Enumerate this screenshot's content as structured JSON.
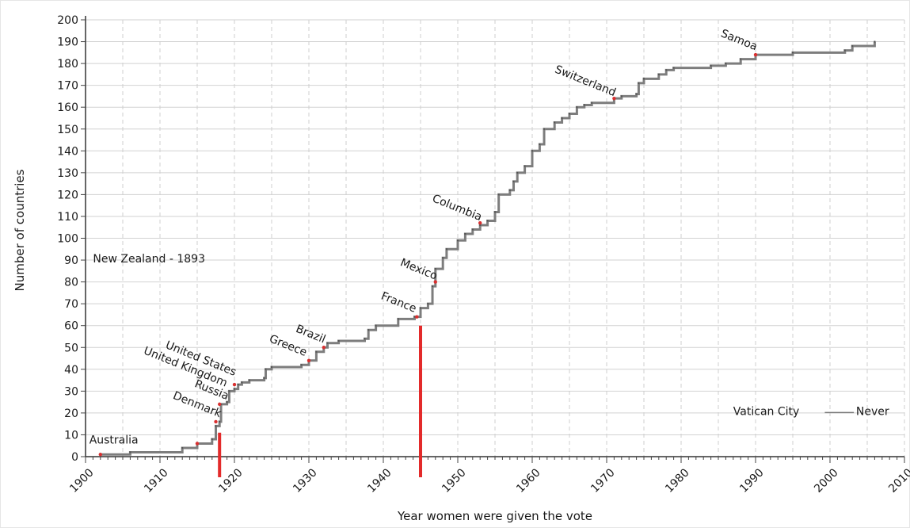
{
  "chart_data": {
    "type": "line",
    "title": "",
    "xlabel": "Year women were given the vote",
    "ylabel": "Number of countries",
    "xlim": [
      1900,
      2010
    ],
    "ylim": [
      0,
      200
    ],
    "x_ticks": [
      1900,
      1910,
      1920,
      1930,
      1940,
      1950,
      1960,
      1970,
      1980,
      1990,
      2000,
      2010
    ],
    "y_ticks": [
      0,
      10,
      20,
      30,
      40,
      50,
      60,
      70,
      80,
      90,
      100,
      110,
      120,
      130,
      140,
      150,
      160,
      170,
      180,
      190,
      200
    ],
    "grid": true,
    "series": [
      {
        "type": "step",
        "color": "#7d7d7d",
        "points": [
          [
            1902,
            1
          ],
          [
            1906,
            2
          ],
          [
            1913,
            4
          ],
          [
            1915,
            6
          ],
          [
            1917,
            8
          ],
          [
            1917.5,
            14
          ],
          [
            1918,
            16
          ],
          [
            1918.2,
            24
          ],
          [
            1919,
            25
          ],
          [
            1919.3,
            30
          ],
          [
            1920,
            31
          ],
          [
            1920.5,
            33
          ],
          [
            1921,
            34
          ],
          [
            1922,
            35
          ],
          [
            1924,
            36
          ],
          [
            1924.2,
            40
          ],
          [
            1925,
            41
          ],
          [
            1929,
            42
          ],
          [
            1930,
            44
          ],
          [
            1931,
            48
          ],
          [
            1932,
            50
          ],
          [
            1932.5,
            52
          ],
          [
            1934,
            53
          ],
          [
            1937.5,
            54
          ],
          [
            1938,
            58
          ],
          [
            1939,
            60
          ],
          [
            1942,
            63
          ],
          [
            1944.2,
            64
          ],
          [
            1945,
            68
          ],
          [
            1946,
            70
          ],
          [
            1946.6,
            78
          ],
          [
            1947,
            86
          ],
          [
            1948,
            91
          ],
          [
            1948.5,
            95
          ],
          [
            1950,
            99
          ],
          [
            1951,
            102
          ],
          [
            1952,
            104
          ],
          [
            1953,
            106
          ],
          [
            1954,
            108
          ],
          [
            1955,
            112
          ],
          [
            1955.5,
            120
          ],
          [
            1957,
            122
          ],
          [
            1957.5,
            126
          ],
          [
            1958,
            130
          ],
          [
            1959,
            133
          ],
          [
            1960,
            140
          ],
          [
            1961,
            143
          ],
          [
            1961.6,
            150
          ],
          [
            1963,
            153
          ],
          [
            1964,
            155
          ],
          [
            1965,
            157
          ],
          [
            1966,
            160
          ],
          [
            1967,
            161
          ],
          [
            1968,
            162
          ],
          [
            1971,
            164
          ],
          [
            1972,
            165
          ],
          [
            1974,
            166
          ],
          [
            1974.3,
            171
          ],
          [
            1975,
            173
          ],
          [
            1977,
            175
          ],
          [
            1978,
            177
          ],
          [
            1979,
            178
          ],
          [
            1984,
            179
          ],
          [
            1986,
            180
          ],
          [
            1988,
            182
          ],
          [
            1990,
            184
          ],
          [
            1995,
            185
          ],
          [
            2002,
            186
          ],
          [
            2003,
            188
          ],
          [
            2006,
            190
          ]
        ]
      }
    ],
    "highlight_points": [
      [
        1902,
        1
      ],
      [
        1915,
        6
      ],
      [
        1917.5,
        16
      ],
      [
        1918,
        24
      ],
      [
        1920,
        33
      ],
      [
        1930,
        44
      ],
      [
        1932,
        50
      ],
      [
        1944.5,
        64
      ],
      [
        1947,
        80
      ],
      [
        1953,
        107
      ],
      [
        1971,
        164
      ],
      [
        1990,
        184
      ]
    ],
    "markers": [
      {
        "x": 1918,
        "y_top": 11,
        "color": "#e32a2a"
      },
      {
        "x": 1945,
        "y_top": 60,
        "color": "#e32a2a"
      }
    ],
    "annotations": [
      {
        "text": "Australia",
        "x": 1900.5,
        "y": 6,
        "rotate": 0,
        "anchor": "start"
      },
      {
        "text": "Denmark",
        "x": 1918,
        "y": 18,
        "rotate": 22,
        "anchor": "end"
      },
      {
        "text": "Russia",
        "x": 1919,
        "y": 26,
        "rotate": 22,
        "anchor": "end"
      },
      {
        "text": "United Kingdom",
        "x": 1918.8,
        "y": 32,
        "rotate": 22,
        "anchor": "end"
      },
      {
        "text": "United States",
        "x": 1920,
        "y": 37,
        "rotate": 22,
        "anchor": "end"
      },
      {
        "text": "Greece",
        "x": 1929.5,
        "y": 46,
        "rotate": 22,
        "anchor": "end"
      },
      {
        "text": "Brazil",
        "x": 1932,
        "y": 52,
        "rotate": 22,
        "anchor": "end"
      },
      {
        "text": "France",
        "x": 1944.2,
        "y": 66,
        "rotate": 22,
        "anchor": "end"
      },
      {
        "text": "Mexico",
        "x": 1947,
        "y": 81,
        "rotate": 22,
        "anchor": "end"
      },
      {
        "text": "Columbia",
        "x": 1953,
        "y": 108,
        "rotate": 22,
        "anchor": "end"
      },
      {
        "text": "Switzerland",
        "x": 1971,
        "y": 165,
        "rotate": 22,
        "anchor": "end"
      },
      {
        "text": "Samoa",
        "x": 1990,
        "y": 186,
        "rotate": 22,
        "anchor": "end"
      },
      {
        "text": "New Zealand - 1893",
        "x": 1901,
        "y": 89,
        "rotate": 0,
        "anchor": "start"
      },
      {
        "text": "Vatican City",
        "x": 1987,
        "y": 19,
        "rotate": 0,
        "anchor": "start"
      },
      {
        "text": "Never",
        "x": 2003.5,
        "y": 19,
        "rotate": 0,
        "anchor": "start"
      }
    ]
  }
}
